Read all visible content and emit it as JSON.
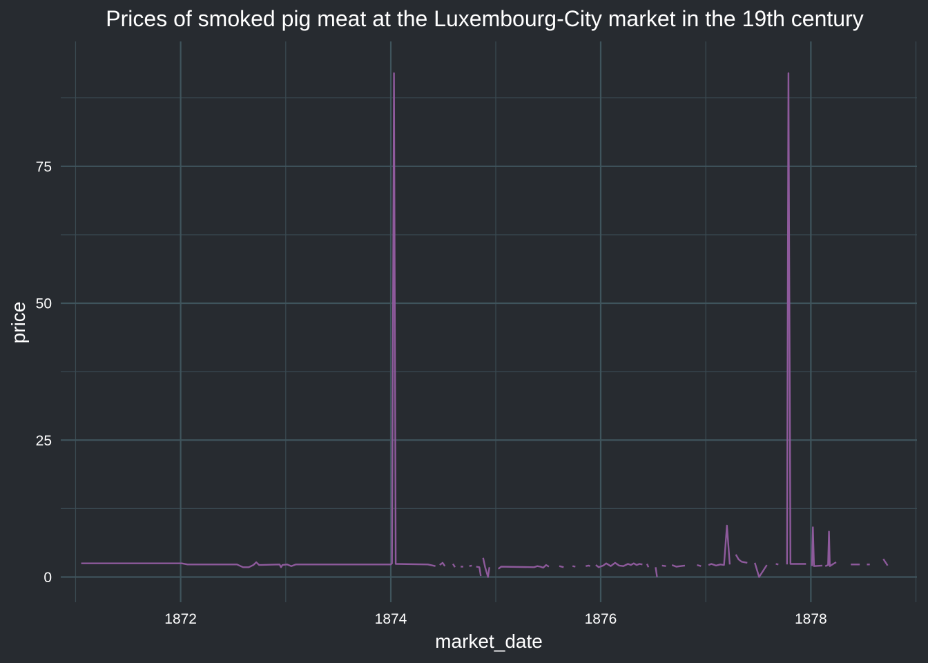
{
  "chart_data": {
    "type": "line",
    "title": "Prices of smoked pig meat at the Luxembourg-City market in the 19th century",
    "xlabel": "market_date",
    "ylabel": "price",
    "xlim": [
      "1870-11-10",
      "1879-01-05"
    ],
    "ylim": [
      -4.6,
      97.8
    ],
    "x_ticks": [
      {
        "value": "1872-01-01",
        "label": "1872"
      },
      {
        "value": "1874-01-01",
        "label": "1874"
      },
      {
        "value": "1876-01-01",
        "label": "1876"
      },
      {
        "value": "1878-01-01",
        "label": "1878"
      }
    ],
    "y_ticks": [
      {
        "value": 0,
        "label": "0"
      },
      {
        "value": 25,
        "label": "25"
      },
      {
        "value": 50,
        "label": "50"
      },
      {
        "value": 75,
        "label": "75"
      }
    ],
    "grid": true,
    "legend": "none",
    "colors": {
      "background": "#272b30",
      "grid": "#3f545c",
      "line": "#8e5a9c",
      "text": "#ffffff"
    },
    "series": [
      {
        "segments": [
          [
            [
              "1871-01-20",
              2.5
            ],
            [
              "1872-01-05",
              2.5
            ],
            [
              "1872-01-25",
              2.3
            ],
            [
              "1872-07-15",
              2.3
            ],
            [
              "1872-08-05",
              1.8
            ],
            [
              "1872-08-25",
              1.8
            ],
            [
              "1872-09-10",
              2.2
            ],
            [
              "1872-09-20",
              2.7
            ],
            [
              "1872-09-30",
              2.2
            ],
            [
              "1872-12-10",
              2.3
            ],
            [
              "1872-12-15",
              1.8
            ],
            [
              "1872-12-20",
              2.2
            ],
            [
              "1873-01-05",
              2.3
            ],
            [
              "1873-01-20",
              2.0
            ],
            [
              "1873-02-05",
              2.3
            ],
            [
              "1874-01-01",
              2.3
            ],
            [
              "1874-01-05",
              2.5
            ],
            [
              "1874-01-12",
              92.0
            ],
            [
              "1874-01-18",
              2.4
            ],
            [
              "1874-05-10",
              2.3
            ],
            [
              "1874-06-05",
              2.0
            ]
          ],
          [
            [
              "1874-06-20",
              2.2
            ],
            [
              "1874-06-30",
              2.6
            ],
            [
              "1874-07-08",
              2.0
            ]
          ],
          [
            [
              "1874-08-05",
              2.4
            ],
            [
              "1874-08-12",
              1.8
            ]
          ],
          [
            [
              "1874-09-01",
              1.9
            ],
            [
              "1874-09-10",
              1.9
            ]
          ],
          [
            [
              "1874-10-01",
              2.0
            ],
            [
              "1874-10-10",
              2.1
            ]
          ],
          [
            [
              "1874-10-25",
              1.9
            ],
            [
              "1874-11-05",
              1.8
            ],
            [
              "1874-11-10",
              0.2
            ]
          ],
          [
            [
              "1874-11-18",
              3.5
            ],
            [
              "1874-11-25",
              1.8
            ],
            [
              "1874-12-05",
              0.0
            ],
            [
              "1874-12-10",
              1.8
            ]
          ],
          [
            [
              "1875-01-10",
              1.5
            ],
            [
              "1875-01-20",
              1.9
            ],
            [
              "1875-05-15",
              1.8
            ],
            [
              "1875-05-25",
              2.0
            ],
            [
              "1875-06-05",
              1.9
            ],
            [
              "1875-06-15",
              1.7
            ],
            [
              "1875-06-25",
              2.2
            ],
            [
              "1875-07-05",
              1.9
            ]
          ],
          [
            [
              "1875-08-10",
              2.0
            ],
            [
              "1875-08-25",
              1.8
            ]
          ],
          [
            [
              "1875-09-25",
              2.0
            ],
            [
              "1875-10-05",
              1.9
            ]
          ],
          [
            [
              "1875-11-10",
              2.0
            ],
            [
              "1875-11-20",
              2.1
            ],
            [
              "1875-11-25",
              2.0
            ]
          ],
          [
            [
              "1875-12-15",
              2.2
            ],
            [
              "1875-12-25",
              1.8
            ],
            [
              "1876-01-10",
              2.1
            ],
            [
              "1876-01-20",
              2.5
            ],
            [
              "1876-02-05",
              2.0
            ],
            [
              "1876-02-20",
              2.6
            ],
            [
              "1876-03-05",
              2.1
            ],
            [
              "1876-03-20",
              2.0
            ],
            [
              "1876-04-05",
              2.4
            ],
            [
              "1876-04-15",
              2.2
            ],
            [
              "1876-04-25",
              2.5
            ],
            [
              "1876-05-05",
              2.2
            ],
            [
              "1876-05-15",
              2.4
            ],
            [
              "1876-05-25",
              2.3
            ]
          ],
          [
            [
              "1876-06-10",
              2.4
            ],
            [
              "1876-06-15",
              1.8
            ]
          ],
          [
            [
              "1876-07-10",
              1.8
            ],
            [
              "1876-07-15",
              0.0
            ]
          ],
          [
            [
              "1876-08-01",
              2.1
            ],
            [
              "1876-08-15",
              2.0
            ]
          ],
          [
            [
              "1876-09-05",
              2.2
            ],
            [
              "1876-09-20",
              1.9
            ],
            [
              "1876-10-05",
              2.0
            ],
            [
              "1876-10-20",
              2.1
            ]
          ],
          [
            [
              "1876-12-01",
              2.2
            ],
            [
              "1876-12-15",
              2.0
            ]
          ],
          [
            [
              "1877-01-10",
              2.2
            ],
            [
              "1877-01-20",
              2.4
            ],
            [
              "1877-02-05",
              2.1
            ],
            [
              "1877-02-20",
              2.3
            ],
            [
              "1877-03-05",
              2.2
            ],
            [
              "1877-03-15",
              9.4
            ],
            [
              "1877-03-25",
              2.3
            ]
          ],
          [
            [
              "1877-04-15",
              4.1
            ],
            [
              "1877-04-25",
              3.2
            ],
            [
              "1877-05-05",
              2.8
            ],
            [
              "1877-05-25",
              2.6
            ]
          ],
          [
            [
              "1877-06-20",
              2.6
            ],
            [
              "1877-07-05",
              0.0
            ],
            [
              "1877-08-01",
              2.2
            ]
          ],
          [
            [
              "1877-09-01",
              2.4
            ],
            [
              "1877-09-10",
              2.3
            ]
          ],
          [
            [
              "1877-10-10",
              2.3
            ],
            [
              "1877-10-15",
              92.0
            ],
            [
              "1877-10-22",
              2.4
            ],
            [
              "1877-12-15",
              2.4
            ]
          ],
          [
            [
              "1878-01-05",
              2.0
            ],
            [
              "1878-01-08",
              9.1
            ],
            [
              "1878-01-12",
              2.0
            ],
            [
              "1878-02-10",
              2.1
            ]
          ],
          [
            [
              "1878-02-20",
              2.0
            ],
            [
              "1878-03-02",
              2.2
            ],
            [
              "1878-03-05",
              8.3
            ],
            [
              "1878-03-08",
              2.0
            ],
            [
              "1878-03-20",
              2.4
            ],
            [
              "1878-03-30",
              2.7
            ]
          ],
          [
            [
              "1878-05-20",
              2.3
            ],
            [
              "1878-06-20",
              2.3
            ]
          ],
          [
            [
              "1878-07-15",
              2.3
            ],
            [
              "1878-07-25",
              2.3
            ]
          ],
          [
            [
              "1878-09-10",
              3.3
            ],
            [
              "1878-09-25",
              2.1
            ]
          ]
        ]
      }
    ]
  }
}
